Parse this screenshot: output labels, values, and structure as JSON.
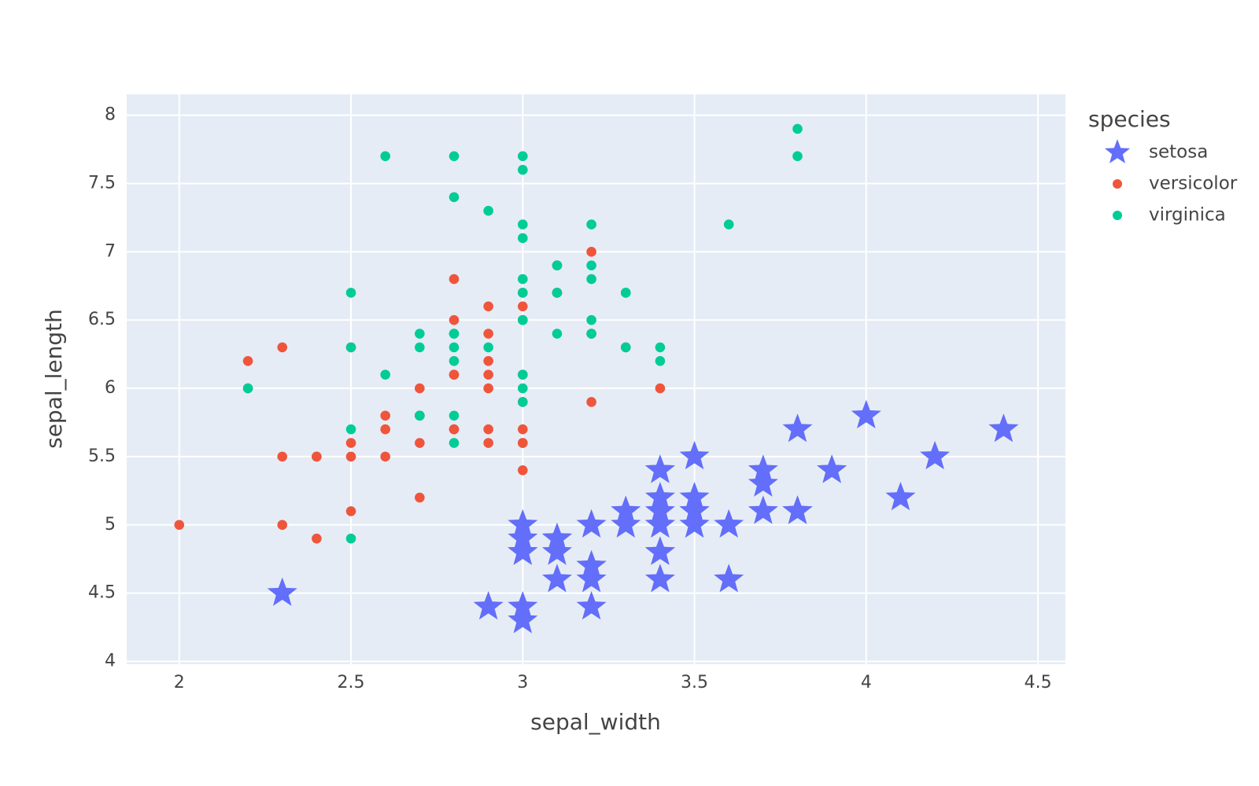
{
  "chart_data": {
    "type": "scatter",
    "x_label": "sepal_width",
    "y_label": "sepal_length",
    "legend_title": "species",
    "xlim": [
      1.847,
      4.58
    ],
    "ylim": [
      3.98,
      8.153
    ],
    "xticks": [
      2,
      2.5,
      3,
      3.5,
      4,
      4.5
    ],
    "yticks": [
      4,
      4.5,
      5,
      5.5,
      6,
      6.5,
      7,
      7.5,
      8
    ],
    "grid": true,
    "legend": "right",
    "background": "#e5ecf6",
    "series": [
      {
        "name": "setosa",
        "color": "#636efa",
        "symbol": "star",
        "x": [
          3.5,
          3,
          3.2,
          3.1,
          3.6,
          3.9,
          3.4,
          3.4,
          2.9,
          3.1,
          3.7,
          3.4,
          3,
          3,
          4,
          4.4,
          3.9,
          3.5,
          3.8,
          3.8,
          3.4,
          3.7,
          3.6,
          3.3,
          3.4,
          3,
          3.4,
          3.5,
          3.4,
          3.2,
          3.1,
          3.4,
          4.1,
          4.2,
          3.1,
          3.2,
          3.5,
          3.1,
          3,
          3.4,
          3.5,
          2.3,
          3.2,
          3.5,
          3.8,
          3,
          3.8,
          3.2,
          3.7,
          3.3
        ],
        "values": [
          5.1,
          4.9,
          4.7,
          4.6,
          5,
          5.4,
          4.6,
          5,
          4.4,
          4.9,
          5.4,
          4.8,
          4.8,
          4.3,
          5.8,
          5.7,
          5.4,
          5.1,
          5.7,
          5.1,
          5.4,
          5.1,
          4.6,
          5.1,
          4.8,
          5,
          5,
          5.2,
          5.2,
          4.7,
          4.8,
          5.4,
          5.2,
          5.5,
          4.9,
          5,
          5.5,
          4.9,
          4.4,
          5.1,
          5,
          4.5,
          4.4,
          5,
          5.1,
          4.8,
          5.1,
          4.6,
          5.3,
          5
        ]
      },
      {
        "name": "versicolor",
        "color": "#EF553B",
        "symbol": "circle",
        "x": [
          3.2,
          3.2,
          3.1,
          2.3,
          2.8,
          2.8,
          3.3,
          2.4,
          2.9,
          2.7,
          2,
          3,
          2.2,
          2.9,
          2.9,
          3.1,
          3,
          2.7,
          2.2,
          2.5,
          3.2,
          2.8,
          2.5,
          2.8,
          2.9,
          3,
          2.8,
          3,
          2.9,
          2.6,
          2.4,
          2.4,
          2.7,
          2.7,
          3,
          3.4,
          3.1,
          2.3,
          3,
          2.5,
          2.6,
          3,
          2.6,
          2.3,
          2.7,
          3,
          2.9,
          2.9,
          2.5,
          2.8
        ],
        "values": [
          7,
          6.4,
          6.9,
          5.5,
          6.5,
          5.7,
          6.3,
          4.9,
          6.6,
          5.2,
          5,
          5.9,
          6,
          6.1,
          5.6,
          6.7,
          5.6,
          5.8,
          6.2,
          5.6,
          5.9,
          6.1,
          6.3,
          6.1,
          6.4,
          6.6,
          6.8,
          6.7,
          6,
          5.7,
          5.5,
          5.5,
          5.8,
          6,
          5.4,
          6,
          6.7,
          6.3,
          5.6,
          5.5,
          5.5,
          6.1,
          5.8,
          5,
          5.6,
          5.7,
          5.7,
          6.2,
          5.1,
          5.7
        ]
      },
      {
        "name": "virginica",
        "color": "#00cc96",
        "symbol": "circle",
        "x": [
          3.3,
          2.7,
          3,
          2.9,
          3,
          3,
          2.5,
          2.9,
          2.5,
          3.6,
          3.2,
          2.7,
          3,
          2.5,
          2.8,
          3.2,
          3,
          3.8,
          2.6,
          2.2,
          3.2,
          2.8,
          2.8,
          2.7,
          3.3,
          3.2,
          2.8,
          3,
          2.8,
          3,
          2.8,
          3.8,
          2.8,
          2.8,
          2.6,
          3,
          3.4,
          3.1,
          3,
          3.1,
          3.1,
          3.1,
          2.7,
          3.2,
          3.3,
          3,
          2.5,
          3,
          3.4,
          3
        ],
        "values": [
          6.3,
          5.8,
          7.1,
          6.3,
          6.5,
          7.6,
          4.9,
          7.3,
          6.7,
          7.2,
          6.5,
          6.4,
          6.8,
          5.7,
          5.8,
          6.4,
          6.5,
          7.7,
          7.7,
          6,
          6.9,
          5.6,
          7.7,
          6.3,
          6.7,
          7.2,
          6.2,
          6.1,
          6.4,
          7.2,
          7.4,
          7.9,
          6.4,
          6.3,
          6.1,
          7.7,
          6.3,
          6.4,
          6,
          6.9,
          6.7,
          6.9,
          5.8,
          6.8,
          6.7,
          6.7,
          6.3,
          6.5,
          6.2,
          5.9
        ]
      }
    ]
  }
}
